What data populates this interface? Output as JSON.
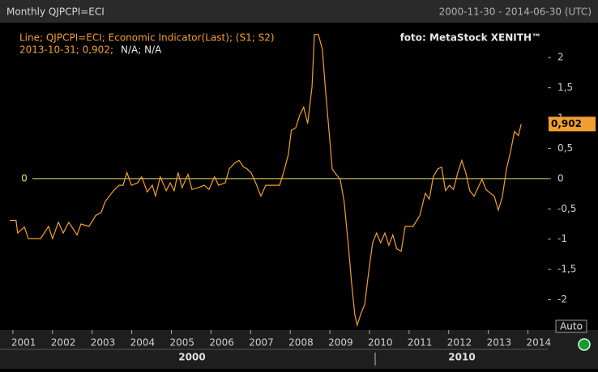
{
  "chart_data": {
    "type": "line",
    "title": "Monthly QJPCPI=ECI",
    "date_range": "2000-11-30 - 2014-06-30 (UTC)",
    "legend_line": "Line; QJPCPI=ECI; Economic Indicator(Last); (S1; S2)",
    "last_point_text": "2013-10-31; 0,902;",
    "last_point_extra": "N/A; N/A",
    "last_value_label": "0,902",
    "source": "foto: MetaStock XENITH™",
    "button": "Auto",
    "decades": [
      "2000",
      "2010"
    ],
    "hline": 0,
    "series": [
      {
        "name": "QJPCPI=ECI",
        "color": "#f0a030",
        "x": [
          2000.92,
          2001.08,
          2001.12,
          2001.29,
          2001.39,
          2001.7,
          2001.9,
          2002.0,
          2002.15,
          2002.27,
          2002.41,
          2002.62,
          2002.72,
          2002.92,
          2003.09,
          2003.23,
          2003.33,
          2003.54,
          2003.68,
          2003.78,
          2003.88,
          2003.99,
          2004.15,
          2004.25,
          2004.39,
          2004.52,
          2004.6,
          2004.72,
          2004.87,
          2004.97,
          2005.07,
          2005.17,
          2005.27,
          2005.42,
          2005.52,
          2005.68,
          2005.83,
          2005.95,
          2006.09,
          2006.19,
          2006.36,
          2006.46,
          2006.6,
          2006.71,
          2006.81,
          2006.91,
          2007.01,
          2007.13,
          2007.26,
          2007.38,
          2007.52,
          2007.73,
          2007.83,
          2007.95,
          2008.03,
          2008.14,
          2008.24,
          2008.34,
          2008.44,
          2008.55,
          2008.61,
          2008.71,
          2008.81,
          2008.89,
          2008.98,
          2009.06,
          2009.16,
          2009.26,
          2009.36,
          2009.47,
          2009.55,
          2009.63,
          2009.69,
          2009.79,
          2009.88,
          2009.98,
          2010.08,
          2010.18,
          2010.28,
          2010.39,
          2010.49,
          2010.59,
          2010.69,
          2010.8,
          2010.9,
          2011.1,
          2011.27,
          2011.41,
          2011.51,
          2011.61,
          2011.72,
          2011.82,
          2011.92,
          2012.02,
          2012.12,
          2012.23,
          2012.33,
          2012.43,
          2012.53,
          2012.64,
          2012.74,
          2012.84,
          2012.94,
          2013.05,
          2013.15,
          2013.25,
          2013.35,
          2013.46,
          2013.56,
          2013.66,
          2013.76,
          2013.83
        ],
        "values": [
          -0.69,
          -0.69,
          -0.9,
          -0.8,
          -0.99,
          -0.99,
          -0.79,
          -0.99,
          -0.72,
          -0.9,
          -0.72,
          -0.93,
          -0.75,
          -0.79,
          -0.61,
          -0.56,
          -0.38,
          -0.2,
          -0.11,
          -0.11,
          0.1,
          -0.11,
          -0.07,
          0.03,
          -0.22,
          -0.11,
          -0.29,
          0.03,
          -0.2,
          -0.07,
          -0.2,
          0.1,
          -0.15,
          0.07,
          -0.18,
          -0.15,
          -0.11,
          -0.18,
          0.03,
          -0.11,
          -0.07,
          0.16,
          0.26,
          0.3,
          0.2,
          0.16,
          0.1,
          -0.07,
          -0.29,
          -0.11,
          -0.11,
          -0.11,
          0.1,
          0.39,
          0.8,
          0.84,
          1.05,
          1.18,
          0.91,
          1.52,
          2.38,
          2.38,
          2.14,
          1.46,
          0.78,
          0.16,
          0.07,
          -0.01,
          -0.38,
          -1.13,
          -1.74,
          -2.25,
          -2.42,
          -2.22,
          -2.08,
          -1.54,
          -1.06,
          -0.9,
          -1.06,
          -0.9,
          -1.1,
          -0.93,
          -1.16,
          -1.2,
          -0.79,
          -0.79,
          -0.61,
          -0.24,
          -0.34,
          0.03,
          0.16,
          0.19,
          -0.2,
          -0.11,
          -0.18,
          0.1,
          0.3,
          0.1,
          -0.2,
          -0.29,
          -0.15,
          -0.01,
          -0.18,
          -0.24,
          -0.29,
          -0.52,
          -0.31,
          0.16,
          0.44,
          0.78,
          0.71,
          0.902
        ]
      }
    ],
    "xlim": [
      2000.92,
      2014.5
    ],
    "xticks": [
      2001,
      2002,
      2003,
      2004,
      2005,
      2006,
      2007,
      2008,
      2009,
      2010,
      2011,
      2012,
      2013,
      2014
    ],
    "ylim": [
      -2.5,
      2.55
    ],
    "yticks": [
      -2,
      {
        "value": -1.5,
        "label": "-1,5"
      },
      -1,
      {
        "value": -0.5,
        "label": "-0,5"
      },
      0,
      {
        "value": 0.5,
        "label": "0,5"
      },
      1,
      {
        "value": 1.5,
        "label": "1,5"
      },
      2
    ],
    "hline_color": "#e8e060"
  }
}
